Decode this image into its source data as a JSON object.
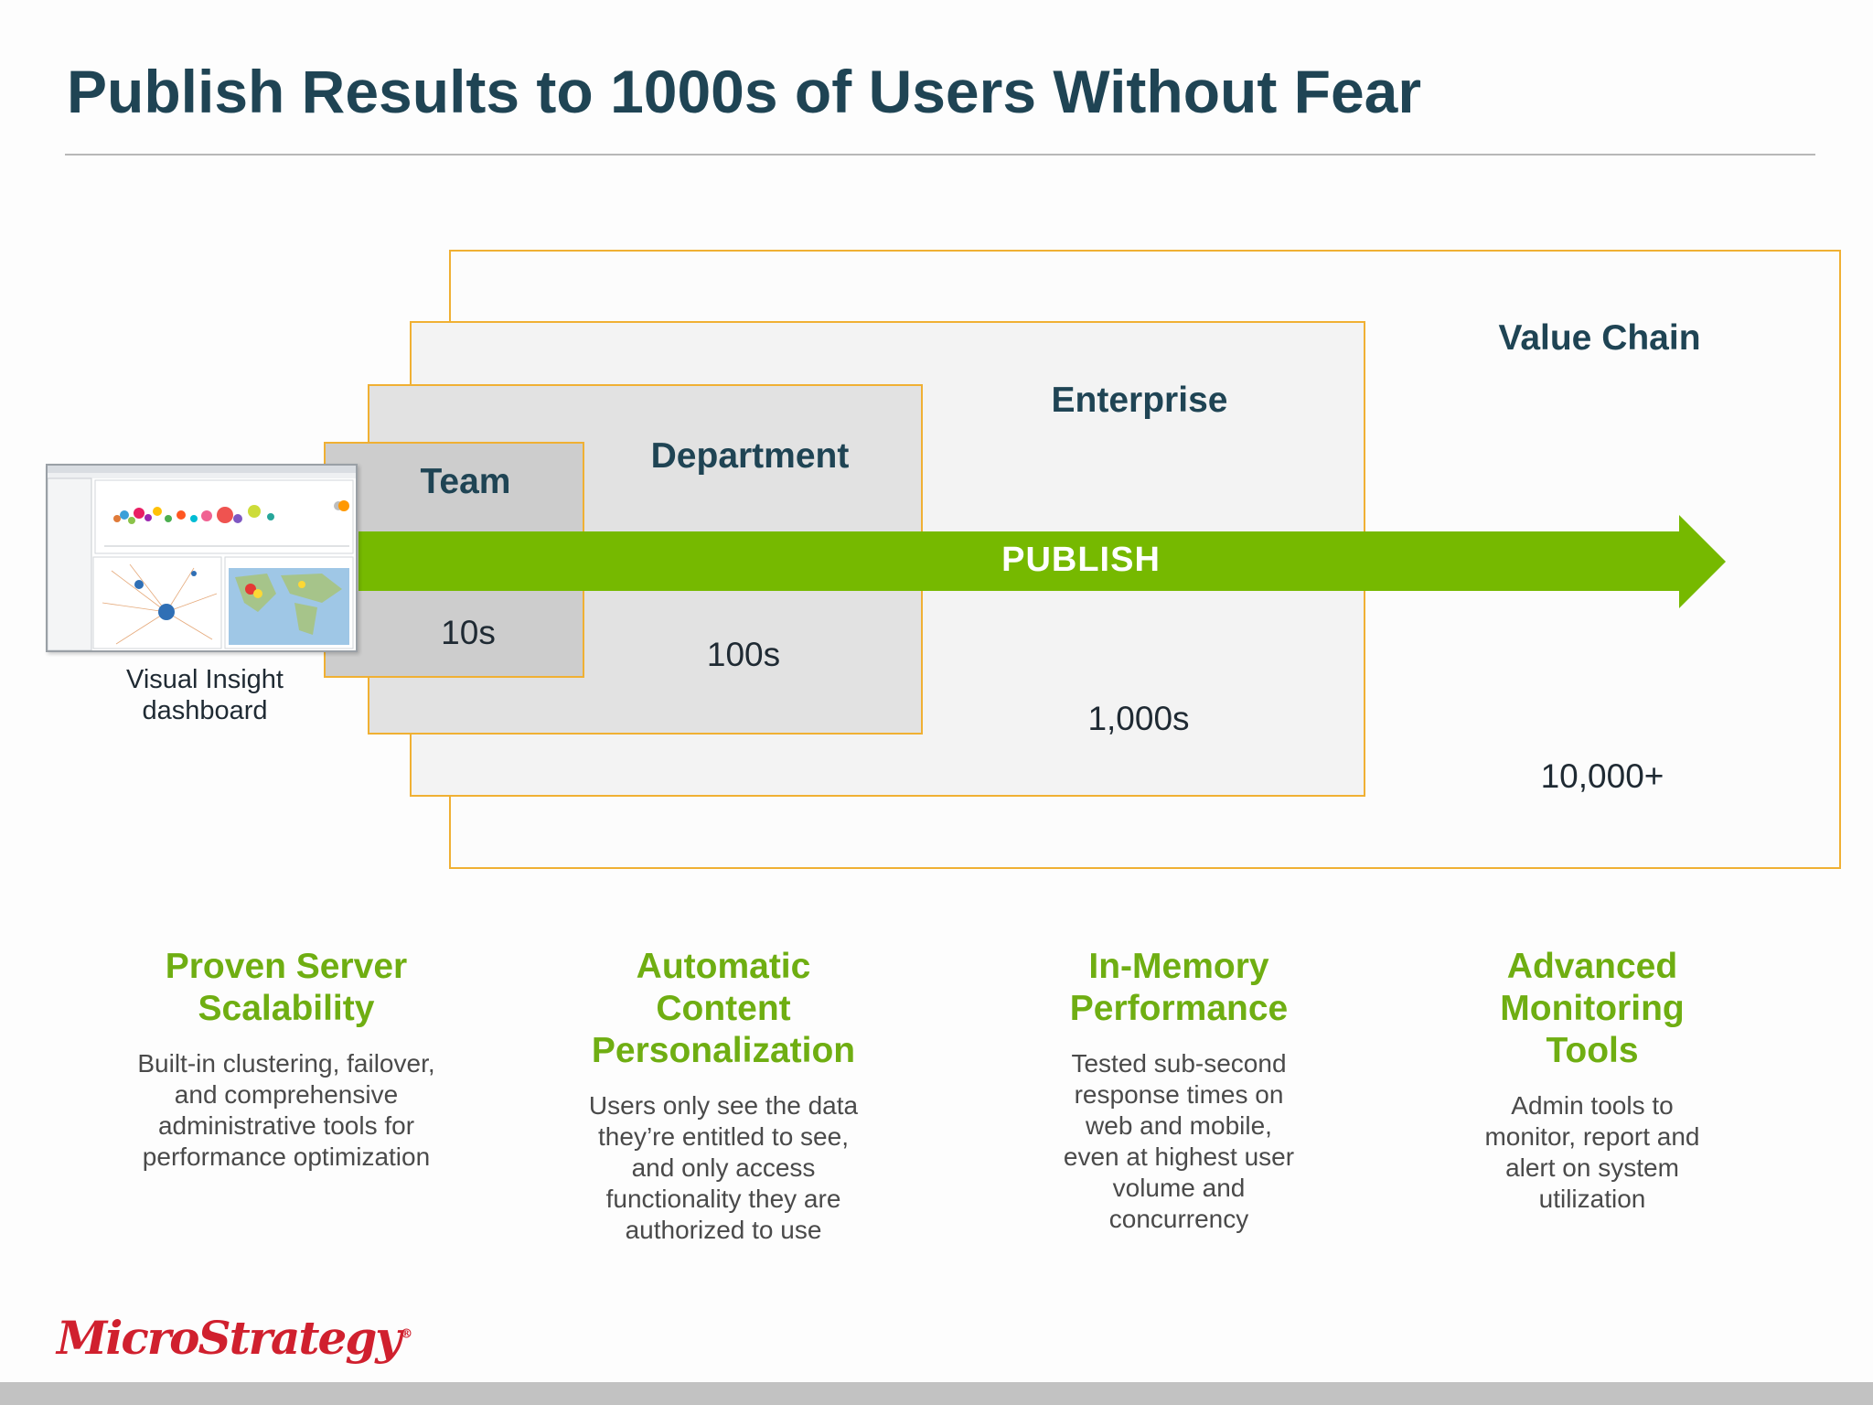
{
  "title": "Publish Results to 1000s of Users Without Fear",
  "levels": {
    "team": {
      "label": "Team",
      "count": "10s"
    },
    "department": {
      "label": "Department",
      "count": "100s"
    },
    "enterprise": {
      "label": "Enterprise",
      "count": "1,000s"
    },
    "value_chain": {
      "label": "Value Chain",
      "count": "10,000+"
    }
  },
  "arrow_label": "PUBLISH",
  "dashboard_caption": [
    "Visual Insight",
    "dashboard"
  ],
  "features": [
    {
      "title": [
        "Proven Server",
        "Scalability"
      ],
      "desc": [
        "Built-in clustering, failover,",
        "and comprehensive",
        "administrative tools for",
        "performance optimization"
      ]
    },
    {
      "title": [
        "Automatic",
        "Content",
        "Personalization"
      ],
      "desc": [
        "Users only see the data",
        "they’re entitled to see,",
        "and only access",
        "functionality they are",
        "authorized to use"
      ]
    },
    {
      "title": [
        "In-Memory",
        "Performance"
      ],
      "desc": [
        "Tested sub-second",
        "response times on",
        "web and mobile,",
        "even at highest user",
        "volume and",
        "concurrency"
      ]
    },
    {
      "title": [
        "Advanced",
        "Monitoring",
        "Tools"
      ],
      "desc": [
        "Admin tools to",
        "monitor, report and",
        "alert on system",
        "utilization"
      ]
    }
  ],
  "logo": "MicroStrategy",
  "colors": {
    "title": "#1f4454",
    "box_border": "#f0b033",
    "arrow": "#76b900",
    "feature_title": "#6fae12",
    "logo": "#d0202e"
  },
  "icons": {
    "dashboard": "dashboard-thumbnail-icon",
    "arrow": "right-arrow-icon"
  }
}
